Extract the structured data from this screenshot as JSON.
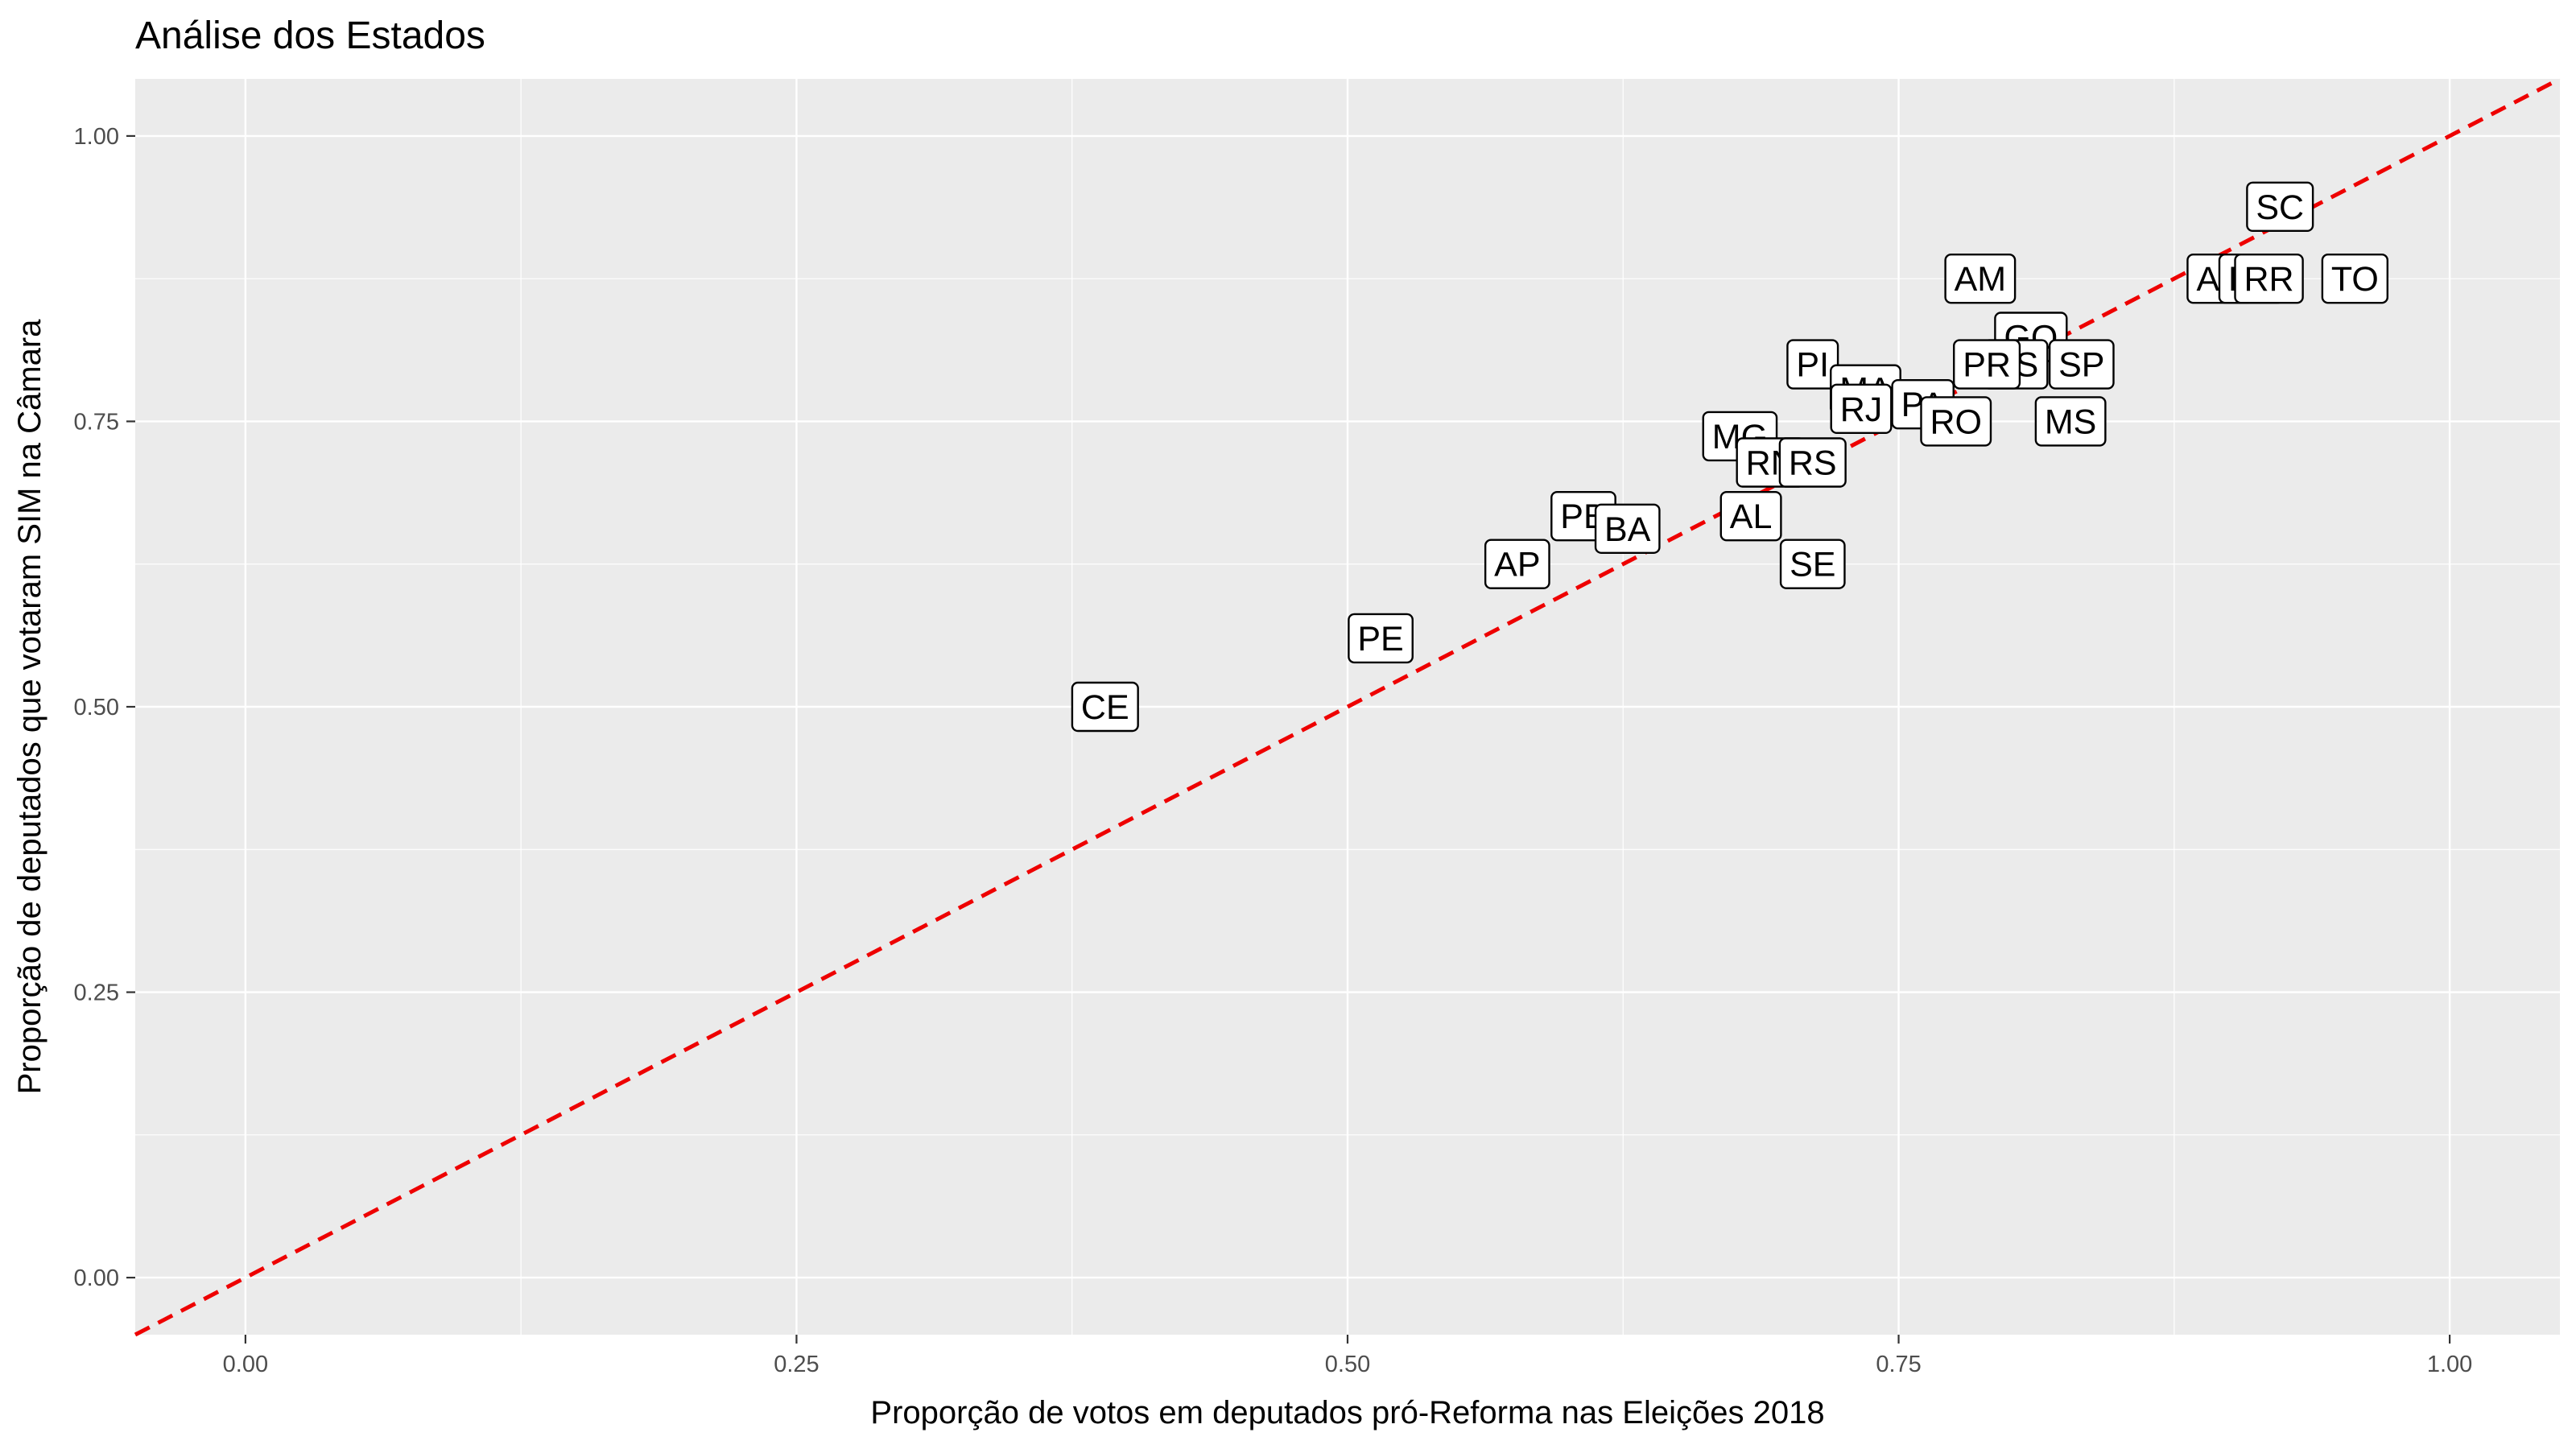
{
  "chart_data": {
    "type": "scatter",
    "title": "Análise dos Estados",
    "xlabel": "Proporção de votos em deputados pró-Reforma nas Eleições 2018",
    "ylabel": "Proporção de deputados que votaram SIM na Câmara",
    "xlim": [
      -0.05,
      1.05
    ],
    "ylim": [
      -0.05,
      1.05
    ],
    "x_ticks": [
      0.0,
      0.25,
      0.5,
      0.75,
      1.0
    ],
    "x_tick_labels": [
      "0.00",
      "0.25",
      "0.50",
      "0.75",
      "1.00"
    ],
    "y_ticks": [
      0.0,
      0.25,
      0.5,
      0.75,
      1.0
    ],
    "y_tick_labels": [
      "0.00",
      "0.25",
      "0.50",
      "0.75",
      "1.00"
    ],
    "grid": true,
    "reference_line": {
      "type": "identity",
      "slope": 1,
      "intercept": 0,
      "style": "dashed",
      "color": "#ee0000"
    },
    "points": [
      {
        "label": "CE",
        "x": 0.39,
        "y": 0.5
      },
      {
        "label": "PE",
        "x": 0.515,
        "y": 0.56
      },
      {
        "label": "AP",
        "x": 0.577,
        "y": 0.625
      },
      {
        "label": "PB",
        "x": 0.607,
        "y": 0.667
      },
      {
        "label": "BA",
        "x": 0.627,
        "y": 0.656
      },
      {
        "label": "MG",
        "x": 0.678,
        "y": 0.737
      },
      {
        "label": "RN",
        "x": 0.692,
        "y": 0.714
      },
      {
        "label": "RS",
        "x": 0.711,
        "y": 0.714
      },
      {
        "label": "AL",
        "x": 0.683,
        "y": 0.667
      },
      {
        "label": "SE",
        "x": 0.711,
        "y": 0.625
      },
      {
        "label": "PI",
        "x": 0.711,
        "y": 0.8
      },
      {
        "label": "MA",
        "x": 0.735,
        "y": 0.778
      },
      {
        "label": "RJ",
        "x": 0.733,
        "y": 0.761
      },
      {
        "label": "PA",
        "x": 0.761,
        "y": 0.765
      },
      {
        "label": "RO",
        "x": 0.776,
        "y": 0.75
      },
      {
        "label": "AM",
        "x": 0.787,
        "y": 0.875
      },
      {
        "label": "GO",
        "x": 0.81,
        "y": 0.824
      },
      {
        "label": "ES",
        "x": 0.803,
        "y": 0.8
      },
      {
        "label": "PR",
        "x": 0.79,
        "y": 0.8
      },
      {
        "label": "SP",
        "x": 0.833,
        "y": 0.8
      },
      {
        "label": "MS",
        "x": 0.828,
        "y": 0.75
      },
      {
        "label": "SC",
        "x": 0.923,
        "y": 0.938
      },
      {
        "label": "AC",
        "x": 0.896,
        "y": 0.875
      },
      {
        "label": "DF",
        "x": 0.91,
        "y": 0.875
      },
      {
        "label": "RR",
        "x": 0.918,
        "y": 0.875
      },
      {
        "label": "TO",
        "x": 0.957,
        "y": 0.875
      }
    ]
  }
}
